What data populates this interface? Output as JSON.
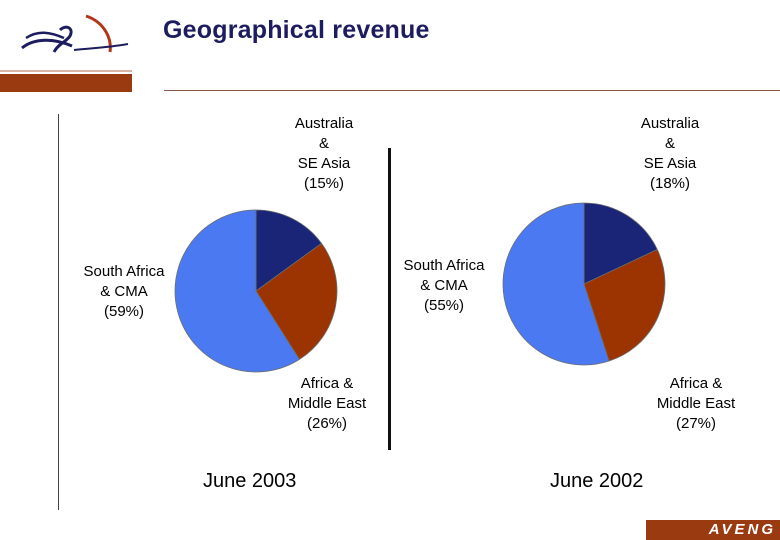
{
  "title": "Geographical revenue",
  "footer": {
    "brand": "AVENG"
  },
  "chart_data": [
    {
      "type": "pie",
      "title": "June 2003",
      "slices": [
        {
          "name": "Australia & SE Asia",
          "label": "Australia\n&\nSE Asia\n(15%)",
          "value": 15,
          "color": "#1a2577"
        },
        {
          "name": "Africa & Middle East",
          "label": "Africa &\nMiddle East\n(26%)",
          "value": 26,
          "color": "#9b3400"
        },
        {
          "name": "South Africa & CMA",
          "label": "South Africa\n& CMA\n(59%)",
          "value": 59,
          "color": "#4a79f2"
        }
      ]
    },
    {
      "type": "pie",
      "title": "June 2002",
      "slices": [
        {
          "name": "Australia & SE Asia",
          "label": "Australia\n&\nSE Asia\n(18%)",
          "value": 18,
          "color": "#1a2577"
        },
        {
          "name": "Africa & Middle East",
          "label": "Africa &\nMiddle East\n(27%)",
          "value": 27,
          "color": "#9b3400"
        },
        {
          "name": "South Africa & CMA",
          "label": "South Africa\n& CMA\n(55%)",
          "value": 55,
          "color": "#4a79f2"
        }
      ]
    }
  ]
}
